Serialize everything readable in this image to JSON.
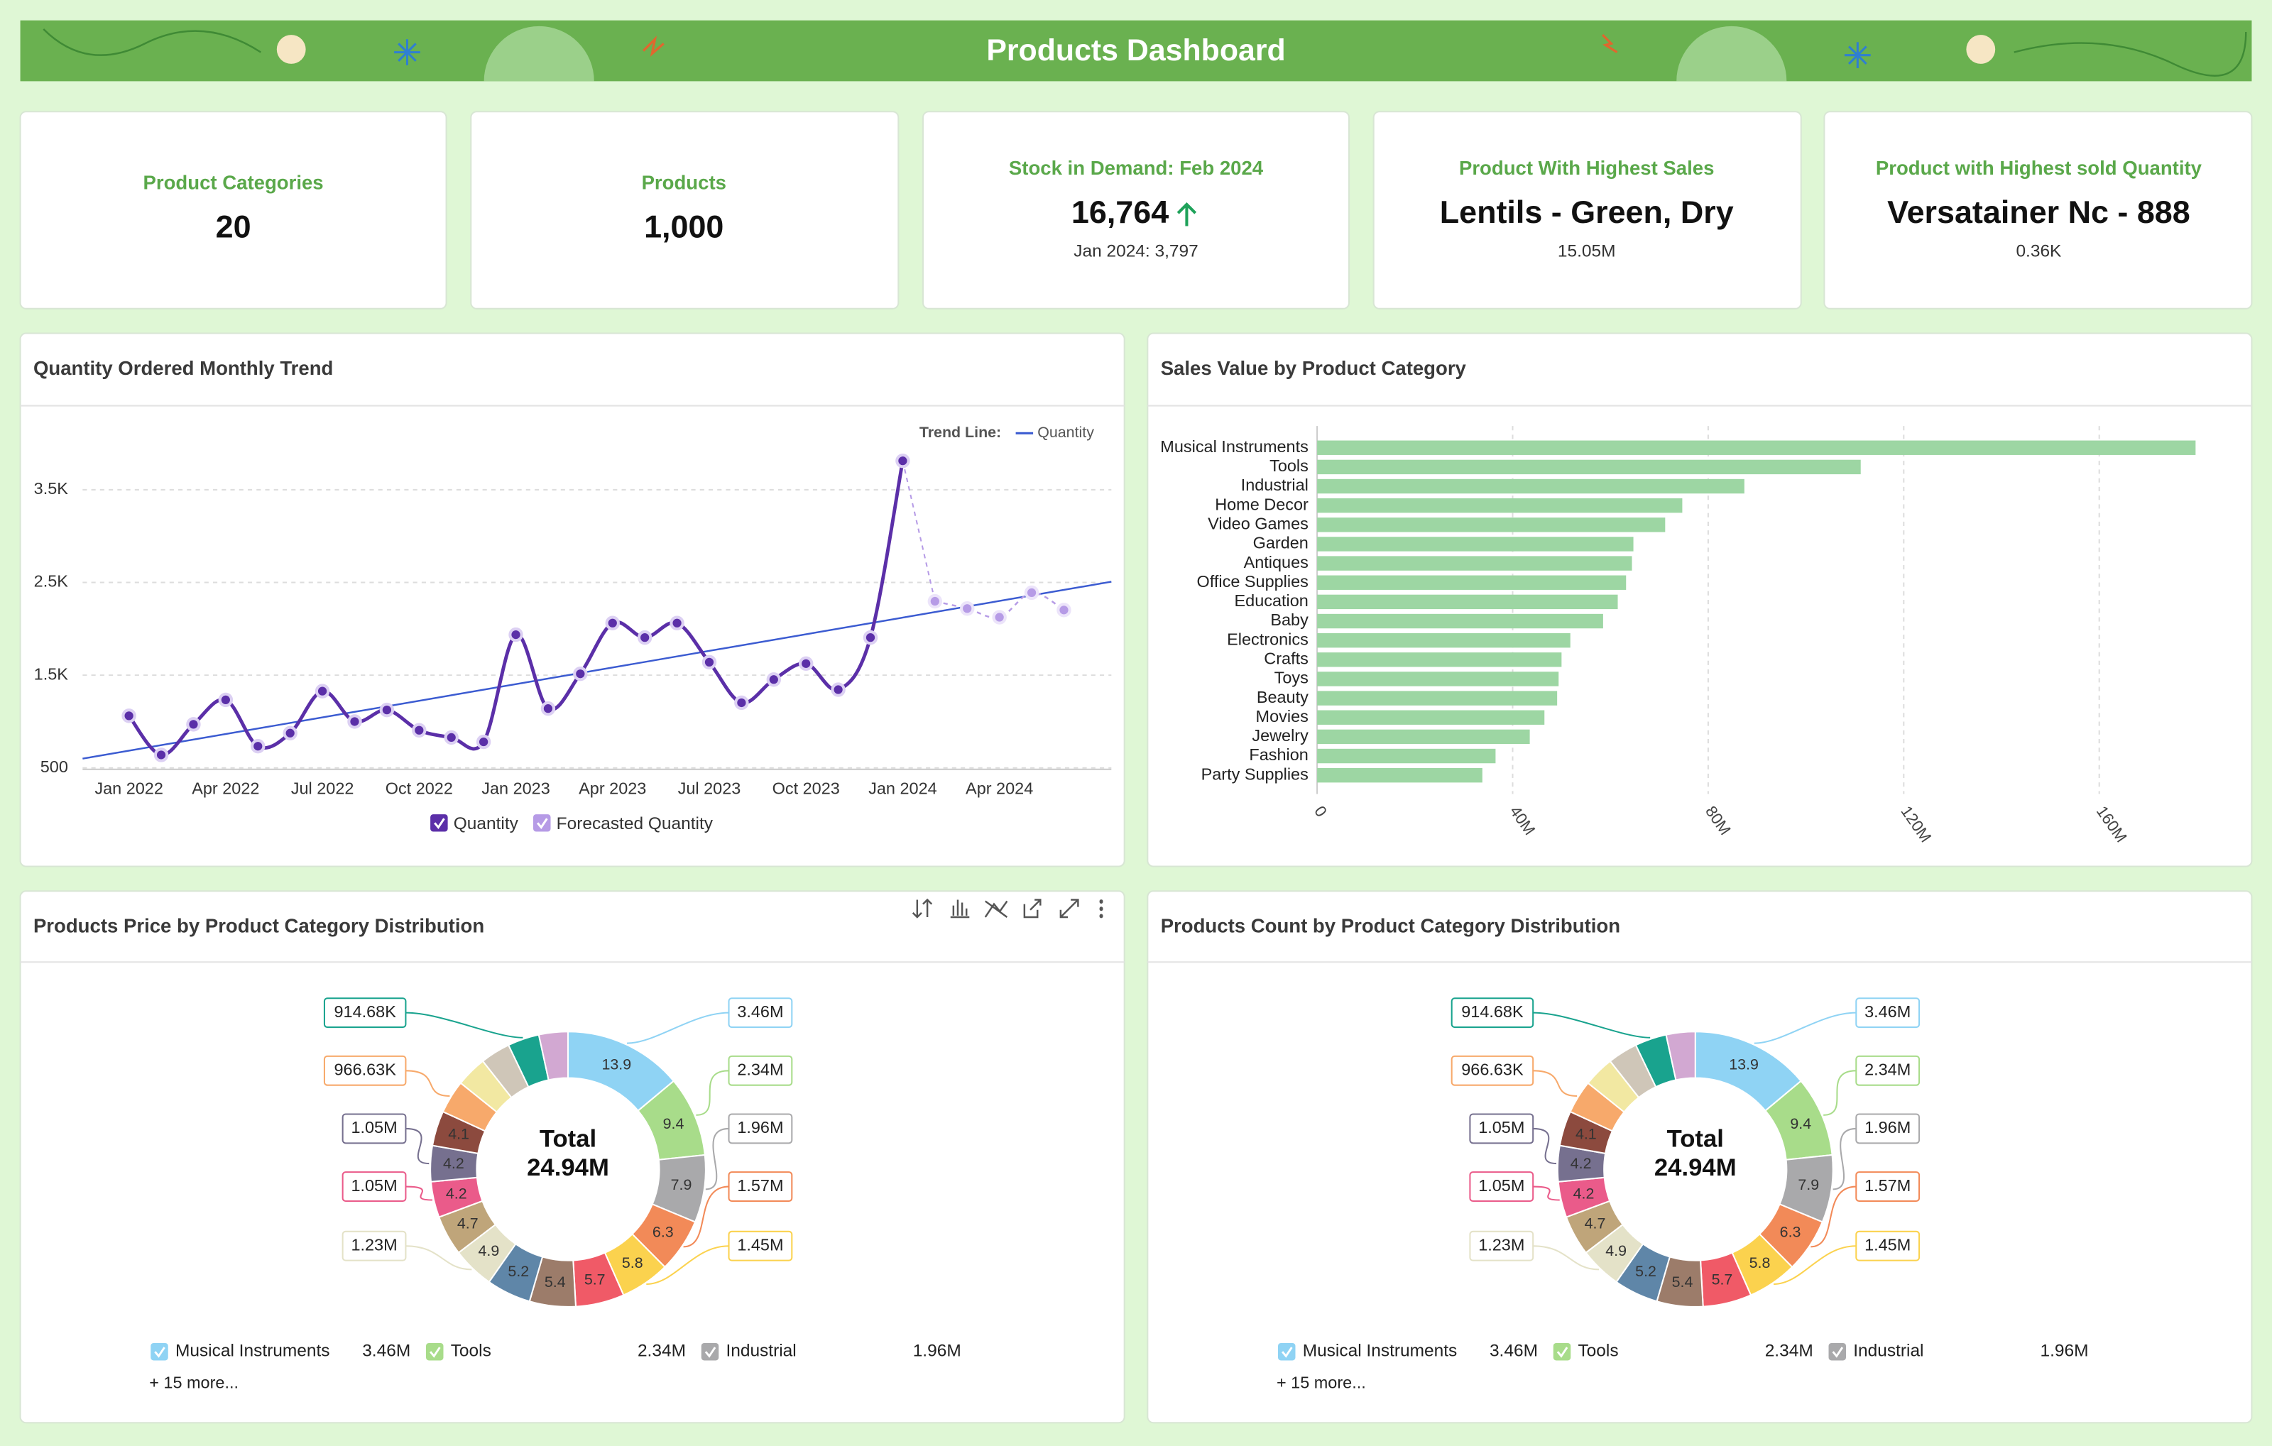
{
  "header": {
    "title": "Products Dashboard"
  },
  "kpis": [
    {
      "label": "Product Categories",
      "value": "20"
    },
    {
      "label": "Products",
      "value": "1,000"
    },
    {
      "label": "Stock in Demand: Feb 2024",
      "value": "16,764",
      "note": "Jan 2024: 3,797"
    },
    {
      "label": "Product With Highest Sales",
      "value": "Lentils - Green, Dry",
      "note": "15.05M"
    },
    {
      "label": "Product with Highest sold Quantity",
      "value": "Versatainer Nc - 888",
      "note": "0.36K"
    }
  ],
  "chart_data": [
    {
      "type": "line",
      "title": "Quantity Ordered Monthly Trend",
      "categories": [
        "Jan 2022",
        null,
        null,
        "Apr 2022",
        null,
        null,
        "Jul 2022",
        null,
        null,
        "Oct 2022",
        null,
        null,
        "Jan 2023",
        null,
        null,
        "Apr 2023",
        null,
        null,
        "Jul 2023",
        null,
        null,
        "Oct 2023",
        null,
        null,
        "Jan 2024",
        null,
        null,
        "Apr 2024",
        null,
        null
      ],
      "series": [
        {
          "name": "Quantity",
          "color": "#5b2fa8",
          "values": [
            1062,
            640,
            970,
            1234,
            734,
            875,
            1328,
            1000,
            1125,
            906,
            828,
            781,
            1937,
            1140,
            1515,
            2062,
            1906,
            2062,
            1640,
            1203,
            1453,
            1625,
            1344,
            1906,
            3812,
            null,
            null,
            null,
            null,
            null
          ]
        },
        {
          "name": "Forecasted Quantity",
          "color": "#b69be6",
          "values": [
            null,
            null,
            null,
            null,
            null,
            null,
            null,
            null,
            null,
            null,
            null,
            null,
            null,
            null,
            null,
            null,
            null,
            null,
            null,
            null,
            null,
            null,
            null,
            null,
            null,
            2297,
            2219,
            2125,
            2390,
            2203
          ]
        }
      ],
      "ylim": [
        500,
        4000
      ],
      "yticks": [
        500,
        {
          "value": 1500,
          "label": "1.5K"
        },
        {
          "value": 2500,
          "label": "2.5K"
        },
        {
          "value": 3500,
          "label": "3.5K"
        }
      ],
      "grid": true,
      "trend_line": {
        "label": "Trend Line:",
        "name": "Quantity",
        "color": "#3b5bd1"
      }
    },
    {
      "type": "bar",
      "orientation": "horizontal",
      "title": "Sales Value by Product Category",
      "categories": [
        "Musical Instruments",
        "Tools",
        "Industrial",
        "Home Decor",
        "Video Games",
        "Garden",
        "Antiques",
        "Office Supplies",
        "Education",
        "Baby",
        "Electronics",
        "Crafts",
        "Toys",
        "Beauty",
        "Movies",
        "Jewelry",
        "Fashion",
        "Party Supplies"
      ],
      "values": [
        179700000,
        111200000,
        87400000,
        74700000,
        71200000,
        64700000,
        64400000,
        63200000,
        61500000,
        58500000,
        51800000,
        50000000,
        49400000,
        49100000,
        46500000,
        43500000,
        36500000,
        33800000
      ],
      "color": "#9dd6a3",
      "xlim": [
        0,
        190000000
      ],
      "xticks": [
        0,
        {
          "value": 40000000,
          "label": "40M"
        },
        {
          "value": 80000000,
          "label": "80M"
        },
        {
          "value": 120000000,
          "label": "120M"
        },
        {
          "value": 160000000,
          "label": "160M"
        }
      ],
      "grid": true
    },
    {
      "type": "donut",
      "title": "Products Price by Product Category Distribution",
      "center_label": "Total",
      "total_label": "24.94M",
      "categories": [
        "Musical Instruments",
        "Tools",
        "Industrial",
        null,
        null,
        null,
        null,
        null,
        null,
        null,
        null,
        null,
        null,
        null,
        null,
        null,
        null,
        null
      ],
      "values": [
        13.9,
        9.4,
        7.9,
        6.3,
        5.8,
        5.7,
        5.4,
        5.2,
        4.9,
        4.7,
        4.2,
        4.2,
        4.1,
        3.9,
        3.6,
        3.5,
        3.7,
        3.4
      ],
      "value_labels": [
        "13.9",
        "9.4",
        "7.9",
        "6.3",
        "5.8",
        "5.7",
        "5.4",
        "5.2",
        "4.9",
        "4.7",
        "4.2",
        "4.2",
        "4.1",
        null,
        null,
        null,
        null,
        null
      ],
      "amount_labels": [
        "3.46M",
        "2.34M",
        "1.96M",
        "1.57M",
        "1.45M",
        null,
        null,
        null,
        "1.23M",
        null,
        "1.05M",
        "1.05M",
        null,
        "966.63K",
        null,
        null,
        "914.68K",
        null
      ],
      "colors": [
        "#8fd3f4",
        "#a8dc8a",
        "#a9a9ab",
        "#f28a58",
        "#fbd24e",
        "#f05a67",
        "#9c7c6a",
        "#5f86a8",
        "#e4e2c8",
        "#bfa57a",
        "#ea5b8a",
        "#76708f",
        "#8c4a3e",
        "#f7a96b",
        "#f2e8a2",
        "#cfc6b8",
        "#19a38e",
        "#d2a8d2"
      ],
      "legend_more": "+ 15 more..."
    },
    {
      "type": "donut",
      "title": "Products Count by Product Category Distribution",
      "center_label": "Total",
      "total_label": "24.94M",
      "categories": [
        "Musical Instruments",
        "Tools",
        "Industrial",
        null,
        null,
        null,
        null,
        null,
        null,
        null,
        null,
        null,
        null,
        null,
        null,
        null,
        null,
        null
      ],
      "values": [
        13.9,
        9.4,
        7.9,
        6.3,
        5.8,
        5.7,
        5.4,
        5.2,
        4.9,
        4.7,
        4.2,
        4.2,
        4.1,
        3.9,
        3.6,
        3.5,
        3.7,
        3.4
      ],
      "value_labels": [
        "13.9",
        "9.4",
        "7.9",
        "6.3",
        "5.8",
        "5.7",
        "5.4",
        "5.2",
        "4.9",
        "4.7",
        "4.2",
        "4.2",
        "4.1",
        null,
        null,
        null,
        null,
        null
      ],
      "amount_labels": [
        "3.46M",
        "2.34M",
        "1.96M",
        "1.57M",
        "1.45M",
        null,
        null,
        null,
        "1.23M",
        null,
        "1.05M",
        "1.05M",
        null,
        "966.63K",
        null,
        null,
        "914.68K",
        null
      ],
      "colors": [
        "#8fd3f4",
        "#a8dc8a",
        "#a9a9ab",
        "#f28a58",
        "#fbd24e",
        "#f05a67",
        "#9c7c6a",
        "#5f86a8",
        "#e4e2c8",
        "#bfa57a",
        "#ea5b8a",
        "#76708f",
        "#8c4a3e",
        "#f7a96b",
        "#f2e8a2",
        "#cfc6b8",
        "#19a38e",
        "#d2a8d2"
      ],
      "legend_more": "+ 15 more..."
    }
  ]
}
